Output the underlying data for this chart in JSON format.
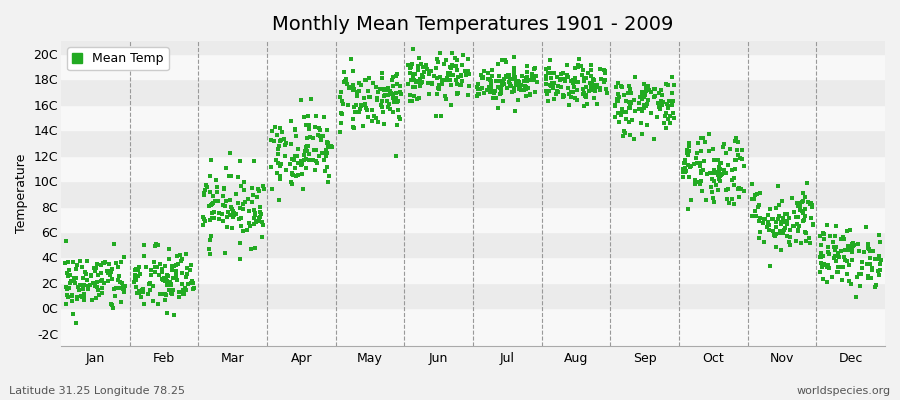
{
  "title": "Monthly Mean Temperatures 1901 - 2009",
  "ylabel": "Temperature",
  "bottom_left": "Latitude 31.25 Longitude 78.25",
  "bottom_right": "worldspecies.org",
  "legend_label": "Mean Temp",
  "dot_color": "#22AA22",
  "dot_size": 6,
  "ylim": [
    -3,
    21
  ],
  "yticks": [
    -2,
    0,
    2,
    4,
    6,
    8,
    10,
    12,
    14,
    16,
    18,
    20
  ],
  "ytick_labels": [
    "-2C",
    "0C",
    "2C",
    "4C",
    "6C",
    "8C",
    "10C",
    "12C",
    "14C",
    "16C",
    "18C",
    "20C"
  ],
  "months": [
    "Jan",
    "Feb",
    "Mar",
    "Apr",
    "May",
    "Jun",
    "Jul",
    "Aug",
    "Sep",
    "Oct",
    "Nov",
    "Dec"
  ],
  "mean_temps": [
    2.0,
    2.2,
    8.0,
    12.5,
    16.5,
    18.0,
    17.8,
    17.5,
    16.0,
    11.0,
    7.0,
    4.0
  ],
  "std_temps": [
    1.2,
    1.3,
    1.5,
    1.5,
    1.3,
    1.0,
    0.8,
    0.8,
    1.2,
    1.5,
    1.3,
    1.2
  ],
  "n_years": 109,
  "bg_color": "#f2f2f2",
  "band_color_light": "#f8f8f8",
  "band_color_dark": "#ebebeb",
  "title_fontsize": 14,
  "axis_fontsize": 9,
  "tick_fontsize": 9
}
